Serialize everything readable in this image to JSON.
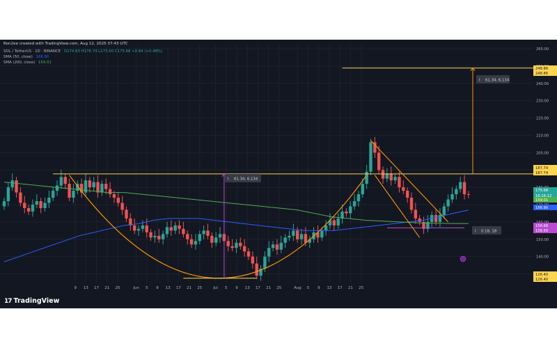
{
  "header": {
    "created_by": "Ron2ee created with TradingView.com, Aug 12, 2025 07:43 UTC",
    "symbol": "SOL / TetherUS · 1D · BINANCE",
    "ohlc": "O174.83 H176.74 L173.60 C175.68 +0.84 (+0.48%)",
    "sma50_label": "SMA (50, close)",
    "sma50_value": "166.90",
    "sma200_label": "SMA (200, close)",
    "sma200_value": "159.01"
  },
  "brand": {
    "name": "TradingView",
    "mark": "17"
  },
  "colors": {
    "background": "#131722",
    "grid": "#1e222d",
    "up": "#26a69a",
    "down": "#ef5350",
    "sma50": "#2962ff",
    "sma200": "#4caf50",
    "orange": "#ff9800",
    "yellow": "#ffd54f",
    "purple": "#b84bd1",
    "axis_text": "#b2b5be"
  },
  "chart_data": {
    "type": "candlestick",
    "title": "SOL / TetherUS · 1D · BINANCE",
    "ylim": [
      125,
      262
    ],
    "y_scale": "linear",
    "grid": true,
    "y_ticks": [
      130,
      140,
      150,
      160,
      170,
      180,
      190,
      200,
      210,
      220,
      230,
      240,
      250,
      260
    ],
    "x_tick_labels": [
      "9",
      "13",
      "17",
      "21",
      "25",
      "Jun",
      "5",
      "9",
      "13",
      "17",
      "21",
      "25",
      "Jul",
      "5",
      "9",
      "13",
      "17",
      "21",
      "25",
      "Aug",
      "5",
      "9",
      "13",
      "17",
      "21",
      "25"
    ],
    "x_tick_dates": [
      "2025-05-09",
      "2025-05-13",
      "2025-05-17",
      "2025-05-21",
      "2025-05-25",
      "2025-06-01",
      "2025-06-05",
      "2025-06-09",
      "2025-06-13",
      "2025-06-17",
      "2025-06-21",
      "2025-06-25",
      "2025-07-01",
      "2025-07-05",
      "2025-07-09",
      "2025-07-13",
      "2025-07-17",
      "2025-07-21",
      "2025-07-25",
      "2025-08-01",
      "2025-08-05",
      "2025-08-09",
      "2025-08-13",
      "2025-08-17",
      "2025-08-21",
      "2025-08-25"
    ],
    "candles_close": [
      172,
      180,
      184,
      177,
      171,
      168,
      166,
      170,
      172,
      168,
      171,
      174,
      178,
      181,
      186,
      182,
      174,
      178,
      182,
      177,
      184,
      180,
      183,
      177,
      182,
      179,
      176,
      174,
      171,
      167,
      162,
      158,
      155,
      156,
      158,
      154,
      151,
      152,
      150,
      153,
      157,
      155,
      158,
      156,
      153,
      150,
      147,
      149,
      153,
      155,
      152,
      148,
      151,
      153,
      149,
      146,
      145,
      148,
      146,
      143,
      140,
      136,
      129,
      133,
      140,
      145,
      147,
      144,
      148,
      151,
      152,
      155,
      150,
      153,
      148,
      150,
      154,
      151,
      155,
      158,
      161,
      158,
      162,
      166,
      165,
      169,
      172,
      176,
      182,
      189,
      206,
      200,
      190,
      185,
      188,
      184,
      186,
      180,
      178,
      174,
      167,
      162,
      160,
      156,
      160,
      164,
      160,
      164,
      169,
      173,
      176,
      179,
      183,
      176,
      175.68
    ],
    "candles_start_date": "2025-04-20",
    "sma_series": [
      {
        "name": "SMA (50, close)",
        "values": [
          137,
          140,
          143,
          146,
          149,
          152,
          154,
          156,
          158,
          159,
          161,
          162,
          162,
          162,
          161,
          160,
          159,
          158,
          157,
          156,
          155,
          155,
          155,
          156,
          157,
          158,
          159,
          160,
          161,
          163,
          165,
          166.9
        ]
      },
      {
        "name": "SMA (200, close)",
        "values": [
          183,
          182,
          181,
          180,
          179,
          178,
          177,
          177,
          176,
          175,
          174,
          173,
          172,
          171,
          170,
          169,
          168,
          167,
          165,
          163,
          162,
          161,
          160.5,
          160,
          159.5,
          159.3,
          159.1,
          159.01
        ]
      }
    ],
    "price_labels": [
      {
        "value": "248.86",
        "kind": "target"
      },
      {
        "value": "187.74",
        "kind": "resistance"
      },
      {
        "value": "175.68",
        "kind": "last_price",
        "countdown": "16:16:12"
      },
      {
        "value": "166.90",
        "kind": "sma50"
      },
      {
        "value": "159.01",
        "kind": "sma200"
      },
      {
        "value": "156.68",
        "kind": "support"
      },
      {
        "value": "156.50",
        "kind": "support"
      },
      {
        "value": "126.40",
        "kind": "cup_bottom"
      }
    ],
    "annotations": [
      {
        "text": "61.34, 6,134",
        "type": "measure",
        "note": "cup depth"
      },
      {
        "text": "61.34, 6,134",
        "type": "measure",
        "note": "projected target"
      },
      {
        "text": "0.18, 18",
        "type": "measure",
        "note": "flag"
      }
    ],
    "patterns": [
      "cup-and-handle arc",
      "resistance line 187.74",
      "descending channel (bull flag)",
      "target line 248.86"
    ]
  }
}
